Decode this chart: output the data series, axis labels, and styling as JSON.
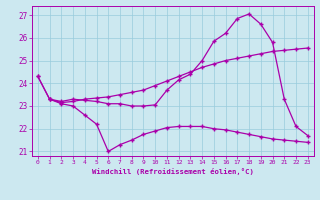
{
  "xlabel": "Windchill (Refroidissement éolien,°C)",
  "bg_color": "#cce8f0",
  "line_color": "#aa00aa",
  "xlim": [
    -0.5,
    23.5
  ],
  "ylim": [
    20.8,
    27.4
  ],
  "xticks": [
    0,
    1,
    2,
    3,
    4,
    5,
    6,
    7,
    8,
    9,
    10,
    11,
    12,
    13,
    14,
    15,
    16,
    17,
    18,
    19,
    20,
    21,
    22,
    23
  ],
  "yticks": [
    21,
    22,
    23,
    24,
    25,
    26,
    27
  ],
  "line1_x": [
    0,
    1,
    2,
    3,
    4,
    5,
    6,
    7,
    8,
    9,
    10,
    11,
    12,
    13,
    14,
    15,
    16,
    17,
    18,
    19,
    20,
    21,
    22,
    23
  ],
  "line1_y": [
    24.3,
    23.3,
    23.2,
    23.3,
    23.25,
    23.2,
    23.1,
    23.1,
    23.0,
    23.0,
    23.05,
    23.7,
    24.15,
    24.4,
    25.0,
    25.85,
    26.2,
    26.85,
    27.05,
    26.6,
    25.8,
    23.3,
    22.1,
    21.7
  ],
  "line2_x": [
    0,
    1,
    2,
    3,
    4,
    5,
    6,
    7,
    8,
    9,
    10,
    11,
    12,
    13,
    14,
    15,
    16,
    17,
    18,
    19,
    20,
    21,
    22,
    23
  ],
  "line2_y": [
    24.3,
    23.3,
    23.15,
    23.2,
    23.3,
    23.35,
    23.4,
    23.5,
    23.6,
    23.7,
    23.9,
    24.1,
    24.3,
    24.5,
    24.7,
    24.85,
    25.0,
    25.1,
    25.2,
    25.3,
    25.4,
    25.45,
    25.5,
    25.55
  ],
  "line3_x": [
    1,
    2,
    3,
    4,
    5,
    6,
    7,
    8,
    9,
    10,
    11,
    12,
    13,
    14,
    15,
    16,
    17,
    18,
    19,
    20,
    21,
    22,
    23
  ],
  "line3_y": [
    23.3,
    23.1,
    23.0,
    22.6,
    22.2,
    21.0,
    21.3,
    21.5,
    21.75,
    21.9,
    22.05,
    22.1,
    22.1,
    22.1,
    22.0,
    21.95,
    21.85,
    21.75,
    21.65,
    21.55,
    21.5,
    21.45,
    21.4
  ],
  "grid_color": "#99ccdd",
  "marker": "+"
}
